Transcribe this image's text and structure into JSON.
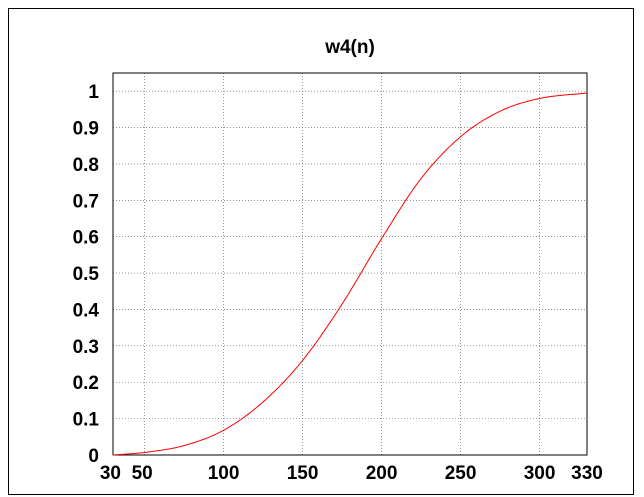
{
  "chart_data": {
    "type": "line",
    "title": "w4(n)",
    "xlabel": "",
    "ylabel": "",
    "xlim": [
      30,
      330
    ],
    "ylim": [
      0,
      1.05
    ],
    "grid": true,
    "x_ticks": [
      30,
      50,
      100,
      150,
      200,
      250,
      300,
      330
    ],
    "x_tick_labels": [
      "30",
      "50",
      "100",
      "150",
      "200",
      "250",
      "300",
      "330"
    ],
    "y_ticks": [
      0,
      0.1,
      0.2,
      0.3,
      0.4,
      0.5,
      0.6,
      0.7,
      0.8,
      0.9,
      1
    ],
    "y_tick_labels": [
      "0",
      "0.1",
      "0.2",
      "0.3",
      "0.4",
      "0.5",
      "0.6",
      "0.7",
      "0.8",
      "0.9",
      "1"
    ],
    "series": [
      {
        "color": "#ff0000",
        "x": [
          30,
          50,
          75,
          100,
          125,
          150,
          175,
          200,
          225,
          250,
          275,
          300,
          330
        ],
        "y": [
          0,
          0.007,
          0.026,
          0.068,
          0.146,
          0.26,
          0.415,
          0.595,
          0.76,
          0.875,
          0.945,
          0.98,
          0.995
        ]
      }
    ]
  }
}
